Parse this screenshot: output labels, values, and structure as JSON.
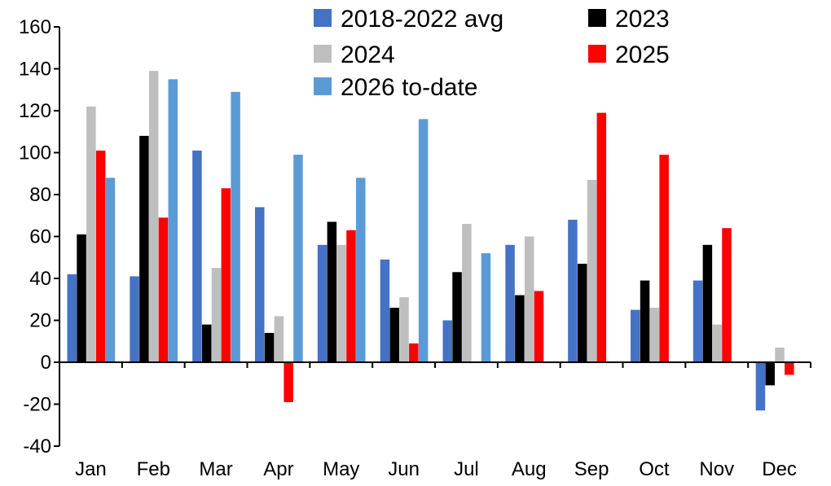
{
  "chart_data": {
    "type": "bar",
    "categories": [
      "Jan",
      "Feb",
      "Mar",
      "Apr",
      "May",
      "Jun",
      "Jul",
      "Aug",
      "Sep",
      "Oct",
      "Nov",
      "Dec"
    ],
    "series": [
      {
        "name": "2018-2022 avg",
        "color": "#4472C4",
        "values": [
          42,
          41,
          101,
          74,
          56,
          49,
          20,
          56,
          68,
          25,
          39,
          -23
        ]
      },
      {
        "name": "2023",
        "color": "#000000",
        "values": [
          61,
          108,
          18,
          14,
          67,
          26,
          43,
          32,
          47,
          39,
          56,
          -11
        ]
      },
      {
        "name": "2024",
        "color": "#BFBFBF",
        "values": [
          122,
          139,
          45,
          22,
          56,
          31,
          66,
          60,
          87,
          26,
          18,
          7
        ]
      },
      {
        "name": "2025",
        "color": "#FF0000",
        "values": [
          101,
          69,
          83,
          -19,
          63,
          9,
          null,
          34,
          119,
          99,
          64,
          -6
        ]
      },
      {
        "name": "2026 to-date",
        "color": "#5B9BD5",
        "values": [
          88,
          135,
          129,
          99,
          88,
          116,
          52,
          null,
          null,
          null,
          null,
          null
        ]
      }
    ],
    "ylim": [
      -40,
      160
    ],
    "yticks": [
      "160",
      "140",
      "120",
      "100",
      "80",
      "60",
      "40",
      "20",
      "0",
      "-20",
      "-40"
    ],
    "xlabel": "",
    "ylabel": "",
    "title": "",
    "grid": false,
    "legend_position": "top"
  }
}
